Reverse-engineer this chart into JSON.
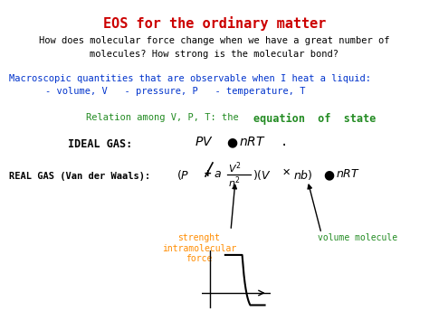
{
  "title": "EOS for the ordinary matter",
  "title_color": "#cc0000",
  "bg_color": "#ffffff",
  "line1": "How does molecular force change when we have a great number of",
  "line2": "molecules? How strong is the molecular bond?",
  "text_color": "#000000",
  "blue_line1": "Macroscopic quantities that are observable when I heat a liquid:",
  "blue_line2": "- volume, V   - pressure, P   - temperature, T",
  "blue_color": "#0033cc",
  "green_color": "#228B22",
  "orange_color": "#ff8c00",
  "arrow_label1": "strenght\nintramolecular\nforce",
  "arrow_label2": "volume molecule"
}
